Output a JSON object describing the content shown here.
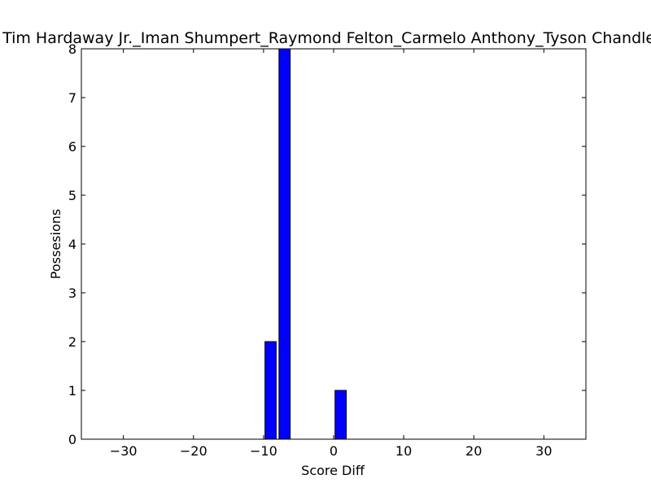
{
  "chart_data": {
    "type": "bar",
    "title": "Tim Hardaway Jr._Iman Shumpert_Raymond Felton_Carmelo Anthony_Tyson Chandler",
    "xlabel": "Score Diff",
    "ylabel": "Possesions",
    "xlim": [
      -36,
      36
    ],
    "ylim": [
      0,
      8
    ],
    "xticks": [
      -30,
      -20,
      -10,
      0,
      10,
      20,
      30
    ],
    "yticks": [
      0,
      1,
      2,
      3,
      4,
      5,
      6,
      7,
      8
    ],
    "bar_width": 1.6,
    "x": [
      -9,
      -7,
      1
    ],
    "values": [
      2,
      8,
      1
    ],
    "bar_color": "#0000ff",
    "edge_color": "#000000",
    "grid": false
  }
}
